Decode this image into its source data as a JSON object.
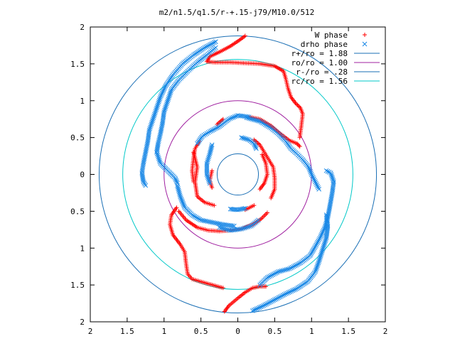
{
  "chart_data": {
    "type": "scatter",
    "title": "m2/n1.5/q1.5/r-+.15-j79/M10.0/512",
    "xlabel": "",
    "ylabel": "",
    "xlim": [
      -2,
      2
    ],
    "ylim": [
      -2,
      2
    ],
    "x_tick_labels": [
      "2",
      "1.5",
      "1",
      "0.5",
      "0",
      "0.5",
      "1",
      "1.5",
      "2"
    ],
    "y_tick_labels": [
      "2",
      "1.5",
      "1",
      "0.5",
      "0",
      "0.5",
      "1",
      "1.5",
      "2"
    ],
    "grid": false,
    "legend_position": "top-right",
    "series": [
      {
        "name": "W phase",
        "marker": "plus",
        "color": "#ff0000",
        "segments": [
          [
            [
              0.1,
              1.88
            ],
            [
              0.02,
              1.82
            ],
            [
              -0.1,
              1.74
            ],
            [
              -0.25,
              1.66
            ],
            [
              -0.38,
              1.6
            ],
            [
              -0.42,
              1.53
            ],
            [
              -0.3,
              1.52
            ],
            [
              -0.1,
              1.52
            ],
            [
              0.1,
              1.51
            ],
            [
              0.3,
              1.5
            ],
            [
              0.5,
              1.47
            ],
            [
              0.62,
              1.4
            ],
            [
              0.65,
              1.3
            ],
            [
              0.68,
              1.17
            ],
            [
              0.72,
              1.05
            ],
            [
              0.78,
              0.97
            ],
            [
              0.85,
              0.9
            ],
            [
              0.88,
              0.82
            ],
            [
              0.86,
              0.65
            ],
            [
              0.84,
              0.5
            ]
          ],
          [
            [
              0.15,
              0.78
            ],
            [
              0.3,
              0.75
            ],
            [
              0.45,
              0.66
            ],
            [
              0.58,
              0.55
            ],
            [
              0.7,
              0.46
            ],
            [
              0.8,
              0.42
            ],
            [
              0.84,
              0.38
            ]
          ],
          [
            [
              -0.18,
              -1.86
            ],
            [
              -0.12,
              -1.78
            ],
            [
              0.0,
              -1.68
            ],
            [
              0.1,
              -1.6
            ],
            [
              0.2,
              -1.54
            ],
            [
              0.3,
              -1.52
            ],
            [
              0.38,
              -1.52
            ]
          ],
          [
            [
              -0.2,
              -1.54
            ],
            [
              -0.45,
              -1.47
            ],
            [
              -0.62,
              -1.42
            ],
            [
              -0.68,
              -1.35
            ],
            [
              -0.7,
              -1.22
            ],
            [
              -0.72,
              -1.05
            ],
            [
              -0.78,
              -0.95
            ],
            [
              -0.88,
              -0.82
            ],
            [
              -0.92,
              -0.68
            ],
            [
              -0.9,
              -0.55
            ],
            [
              -0.83,
              -0.45
            ]
          ],
          [
            [
              -0.8,
              -0.5
            ],
            [
              -0.7,
              -0.62
            ],
            [
              -0.55,
              -0.72
            ],
            [
              -0.4,
              -0.76
            ],
            [
              -0.25,
              -0.77
            ],
            [
              -0.1,
              -0.76
            ],
            [
              0.05,
              -0.74
            ],
            [
              0.2,
              -0.68
            ],
            [
              0.32,
              -0.6
            ],
            [
              0.4,
              -0.52
            ]
          ],
          [
            [
              -0.6,
              0.3
            ],
            [
              -0.55,
              0.1
            ],
            [
              -0.58,
              -0.1
            ],
            [
              -0.55,
              -0.3
            ],
            [
              -0.45,
              -0.38
            ],
            [
              -0.32,
              -0.42
            ]
          ],
          [
            [
              0.33,
              0.27
            ],
            [
              0.38,
              0.15
            ],
            [
              0.4,
              0.0
            ],
            [
              0.36,
              -0.12
            ],
            [
              0.3,
              -0.2
            ]
          ],
          [
            [
              0.22,
              0.47
            ],
            [
              0.3,
              0.4
            ],
            [
              0.36,
              0.3
            ],
            [
              0.42,
              0.2
            ],
            [
              0.48,
              0.1
            ],
            [
              0.5,
              -0.05
            ],
            [
              0.5,
              -0.2
            ],
            [
              0.45,
              -0.32
            ]
          ],
          [
            [
              -0.52,
              0.45
            ],
            [
              -0.58,
              0.35
            ],
            [
              -0.6,
              0.22
            ],
            [
              -0.62,
              0.05
            ],
            [
              -0.6,
              -0.1
            ]
          ],
          [
            [
              -0.2,
              0.75
            ],
            [
              -0.28,
              0.68
            ]
          ],
          [
            [
              0.1,
              -0.48
            ],
            [
              0.22,
              -0.42
            ]
          ],
          [
            [
              -0.35,
              0.05
            ],
            [
              -0.38,
              -0.08
            ],
            [
              -0.35,
              -0.18
            ]
          ]
        ]
      },
      {
        "name": "drho phase",
        "marker": "cross",
        "color": "#1a88e6",
        "segments": [
          [
            [
              0.3,
              -1.5
            ],
            [
              0.4,
              -1.4
            ],
            [
              0.55,
              -1.32
            ],
            [
              0.7,
              -1.28
            ],
            [
              0.85,
              -1.2
            ],
            [
              0.98,
              -1.1
            ],
            [
              1.05,
              -0.98
            ],
            [
              1.12,
              -0.85
            ],
            [
              1.18,
              -0.72
            ],
            [
              1.22,
              -0.58
            ],
            [
              1.25,
              -0.42
            ],
            [
              1.28,
              -0.25
            ],
            [
              1.3,
              -0.1
            ],
            [
              1.26,
              0.02
            ],
            [
              1.2,
              0.05
            ]
          ],
          [
            [
              0.2,
              -1.85
            ],
            [
              0.35,
              -1.78
            ],
            [
              0.5,
              -1.7
            ],
            [
              0.65,
              -1.62
            ],
            [
              0.8,
              -1.55
            ],
            [
              0.95,
              -1.45
            ],
            [
              1.05,
              -1.32
            ],
            [
              1.1,
              -1.18
            ],
            [
              1.15,
              -1.02
            ],
            [
              1.2,
              -0.86
            ],
            [
              1.22,
              -0.7
            ],
            [
              1.2,
              -0.55
            ]
          ],
          [
            [
              -0.3,
              1.8
            ],
            [
              -0.45,
              1.72
            ],
            [
              -0.6,
              1.62
            ],
            [
              -0.75,
              1.5
            ],
            [
              -0.88,
              1.35
            ],
            [
              -0.98,
              1.2
            ],
            [
              -1.05,
              1.05
            ],
            [
              -1.1,
              0.9
            ],
            [
              -1.15,
              0.75
            ],
            [
              -1.2,
              0.6
            ],
            [
              -1.22,
              0.45
            ],
            [
              -1.25,
              0.3
            ],
            [
              -1.28,
              0.15
            ],
            [
              -1.3,
              0.02
            ],
            [
              -1.28,
              -0.1
            ],
            [
              -1.25,
              -0.15
            ]
          ],
          [
            [
              -0.3,
              1.72
            ],
            [
              -0.42,
              1.62
            ],
            [
              -0.55,
              1.52
            ],
            [
              -0.68,
              1.4
            ],
            [
              -0.8,
              1.28
            ],
            [
              -0.9,
              1.15
            ],
            [
              -0.95,
              1.0
            ],
            [
              -1.0,
              0.85
            ],
            [
              -1.02,
              0.7
            ],
            [
              -1.05,
              0.55
            ],
            [
              -1.08,
              0.42
            ],
            [
              -1.1,
              0.3
            ],
            [
              -1.05,
              0.15
            ],
            [
              -0.95,
              0.05
            ],
            [
              -0.85,
              -0.05
            ],
            [
              -0.82,
              -0.12
            ]
          ],
          [
            [
              -0.82,
              -0.15
            ],
            [
              -0.78,
              -0.3
            ],
            [
              -0.72,
              -0.45
            ],
            [
              -0.62,
              -0.55
            ],
            [
              -0.5,
              -0.62
            ],
            [
              -0.35,
              -0.65
            ],
            [
              -0.2,
              -0.68
            ],
            [
              -0.05,
              -0.7
            ]
          ],
          [
            [
              0.15,
              0.78
            ],
            [
              0.0,
              0.8
            ],
            [
              -0.12,
              0.75
            ],
            [
              -0.25,
              0.65
            ],
            [
              -0.38,
              0.58
            ],
            [
              -0.48,
              0.52
            ],
            [
              -0.55,
              0.42
            ]
          ],
          [
            [
              0.12,
              0.77
            ],
            [
              0.3,
              0.72
            ],
            [
              0.45,
              0.63
            ],
            [
              0.55,
              0.55
            ],
            [
              0.65,
              0.45
            ],
            [
              0.72,
              0.35
            ],
            [
              0.8,
              0.28
            ],
            [
              0.88,
              0.2
            ],
            [
              0.96,
              0.1
            ],
            [
              1.0,
              0.0
            ],
            [
              1.05,
              -0.1
            ],
            [
              1.1,
              -0.2
            ]
          ],
          [
            [
              -0.35,
              0.4
            ],
            [
              -0.38,
              0.28
            ],
            [
              -0.42,
              0.15
            ],
            [
              -0.42,
              0.0
            ],
            [
              -0.38,
              -0.12
            ]
          ],
          [
            [
              0.05,
              0.5
            ],
            [
              0.15,
              0.47
            ],
            [
              0.22,
              0.42
            ],
            [
              0.25,
              0.35
            ]
          ],
          [
            [
              -0.1,
              -0.47
            ],
            [
              0.0,
              -0.48
            ],
            [
              0.1,
              -0.46
            ]
          ],
          [
            [
              -0.25,
              -0.72
            ],
            [
              -0.1,
              -0.76
            ],
            [
              0.05,
              -0.74
            ],
            [
              0.18,
              -0.7
            ],
            [
              0.28,
              -0.62
            ]
          ]
        ]
      }
    ],
    "circles": [
      {
        "name": "r+/ro = 1.88",
        "radius": 1.88,
        "color": "#1a6fb5"
      },
      {
        "name": "ro/ro = 1.00",
        "radius": 1.0,
        "color": "#a020a0"
      },
      {
        "name": "r-/ro = .28",
        "radius": 0.28,
        "color": "#1a6fb5"
      },
      {
        "name": "rc/ro = 1.56",
        "radius": 1.56,
        "color": "#00c8c8"
      }
    ]
  }
}
